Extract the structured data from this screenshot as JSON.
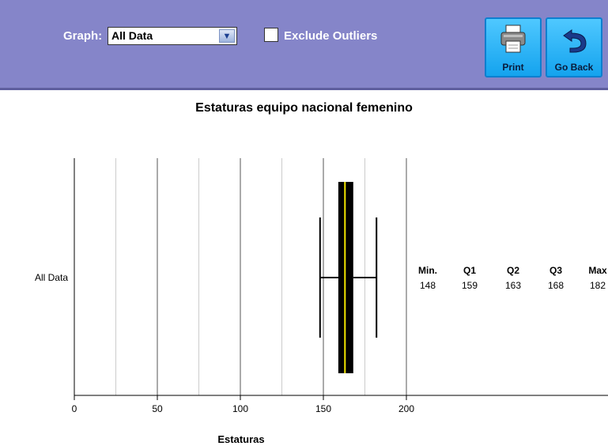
{
  "toolbar": {
    "graph_label": "Graph:",
    "graph_select_value": "All Data",
    "exclude_label": "Exclude Outliers",
    "exclude_checked": false,
    "print_label": "Print",
    "back_label": "Go Back",
    "print_icon": "printer-icon",
    "back_icon": "undo-arrow-icon"
  },
  "chart_data": {
    "type": "boxplot",
    "title": "Estaturas equipo nacional femenino",
    "xlabel": "Estaturas",
    "xlim": [
      0,
      200
    ],
    "x_ticks": [
      0,
      50,
      100,
      150,
      200
    ],
    "minor_grid_step": 25,
    "categories": [
      "All Data"
    ],
    "series": [
      {
        "name": "All Data",
        "min": 148,
        "q1": 159,
        "median": 163,
        "q3": 168,
        "max": 182
      }
    ],
    "stats_headers": [
      "Min.",
      "Q1",
      "Q2",
      "Q3",
      "Max"
    ],
    "stats_values": [
      "148",
      "159",
      "163",
      "168",
      "182"
    ],
    "colors": {
      "box": "#000000",
      "median": "#f3e500",
      "grid_major": "#555555",
      "grid_minor": "#cccccc"
    }
  }
}
